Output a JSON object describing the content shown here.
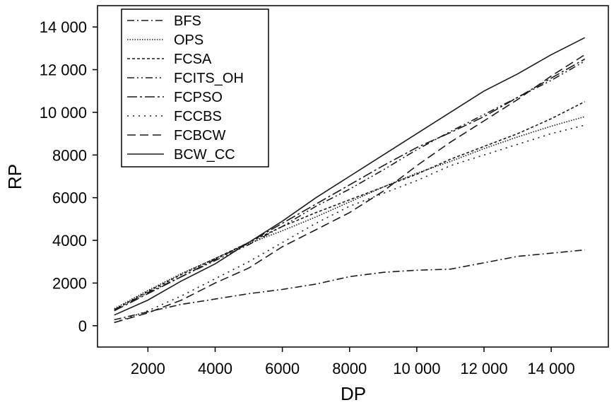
{
  "chart_data": {
    "type": "line",
    "title": "",
    "xlabel": "DP",
    "ylabel": "RP",
    "xlim": [
      500,
      15700
    ],
    "ylim": [
      -1000,
      15000
    ],
    "x_ticks": [
      2000,
      4000,
      6000,
      8000,
      10000,
      12000,
      14000
    ],
    "x_tick_labels": [
      "2000",
      "4000",
      "6000",
      "8000",
      "10 000",
      "12 000",
      "14 000"
    ],
    "y_ticks": [
      0,
      2000,
      4000,
      6000,
      8000,
      10000,
      12000,
      14000
    ],
    "y_tick_labels": [
      "0",
      "2000",
      "4000",
      "6000",
      "8000",
      "10 000",
      "12 000",
      "14 000"
    ],
    "grid": false,
    "legend_position": "top-left",
    "x": [
      1000,
      2000,
      3000,
      4000,
      5000,
      6000,
      7000,
      8000,
      9000,
      10000,
      11000,
      12000,
      13000,
      14000,
      15000
    ],
    "series": [
      {
        "name": "BFS",
        "dash": "10 4 2 4",
        "values": [
          280,
          650,
          1000,
          1250,
          1500,
          1700,
          1950,
          2300,
          2500,
          2600,
          2650,
          2950,
          3250,
          3400,
          3550
        ]
      },
      {
        "name": "OPS",
        "dash": "1.5 2",
        "values": [
          800,
          1650,
          2450,
          3150,
          3850,
          4450,
          5100,
          5800,
          6500,
          7150,
          7700,
          8300,
          8850,
          9350,
          9800
        ]
      },
      {
        "name": "FCSA",
        "dash": "4 3",
        "values": [
          750,
          1600,
          2400,
          3150,
          3900,
          4650,
          5300,
          5900,
          6500,
          7100,
          7800,
          8400,
          9000,
          9700,
          10500
        ]
      },
      {
        "name": "FCITS_OH",
        "dash": "10 4 2 4 2 4",
        "values": [
          750,
          1550,
          2300,
          3050,
          3800,
          4650,
          5600,
          6400,
          7300,
          8250,
          9100,
          9900,
          10700,
          11500,
          12400
        ]
      },
      {
        "name": "FCPSO",
        "dash": "14 4 3 4",
        "values": [
          700,
          1500,
          2300,
          3100,
          3900,
          4800,
          5700,
          6600,
          7500,
          8350,
          9050,
          9800,
          10700,
          11600,
          12500
        ]
      },
      {
        "name": "FCCBS",
        "dash": "2 6",
        "values": [
          150,
          700,
          1400,
          2200,
          3000,
          3900,
          4800,
          5600,
          6200,
          6800,
          7500,
          8000,
          8500,
          9000,
          9400
        ]
      },
      {
        "name": "FCBCW",
        "dash": "12 6",
        "values": [
          150,
          600,
          1200,
          2000,
          2700,
          3700,
          4500,
          5300,
          6300,
          7500,
          8600,
          9600,
          10600,
          11700,
          12700
        ]
      },
      {
        "name": "BCW_CC",
        "dash": "",
        "values": [
          500,
          1200,
          2100,
          2900,
          3900,
          4900,
          6000,
          7000,
          8000,
          9000,
          10000,
          11000,
          11800,
          12700,
          13500
        ]
      }
    ]
  }
}
